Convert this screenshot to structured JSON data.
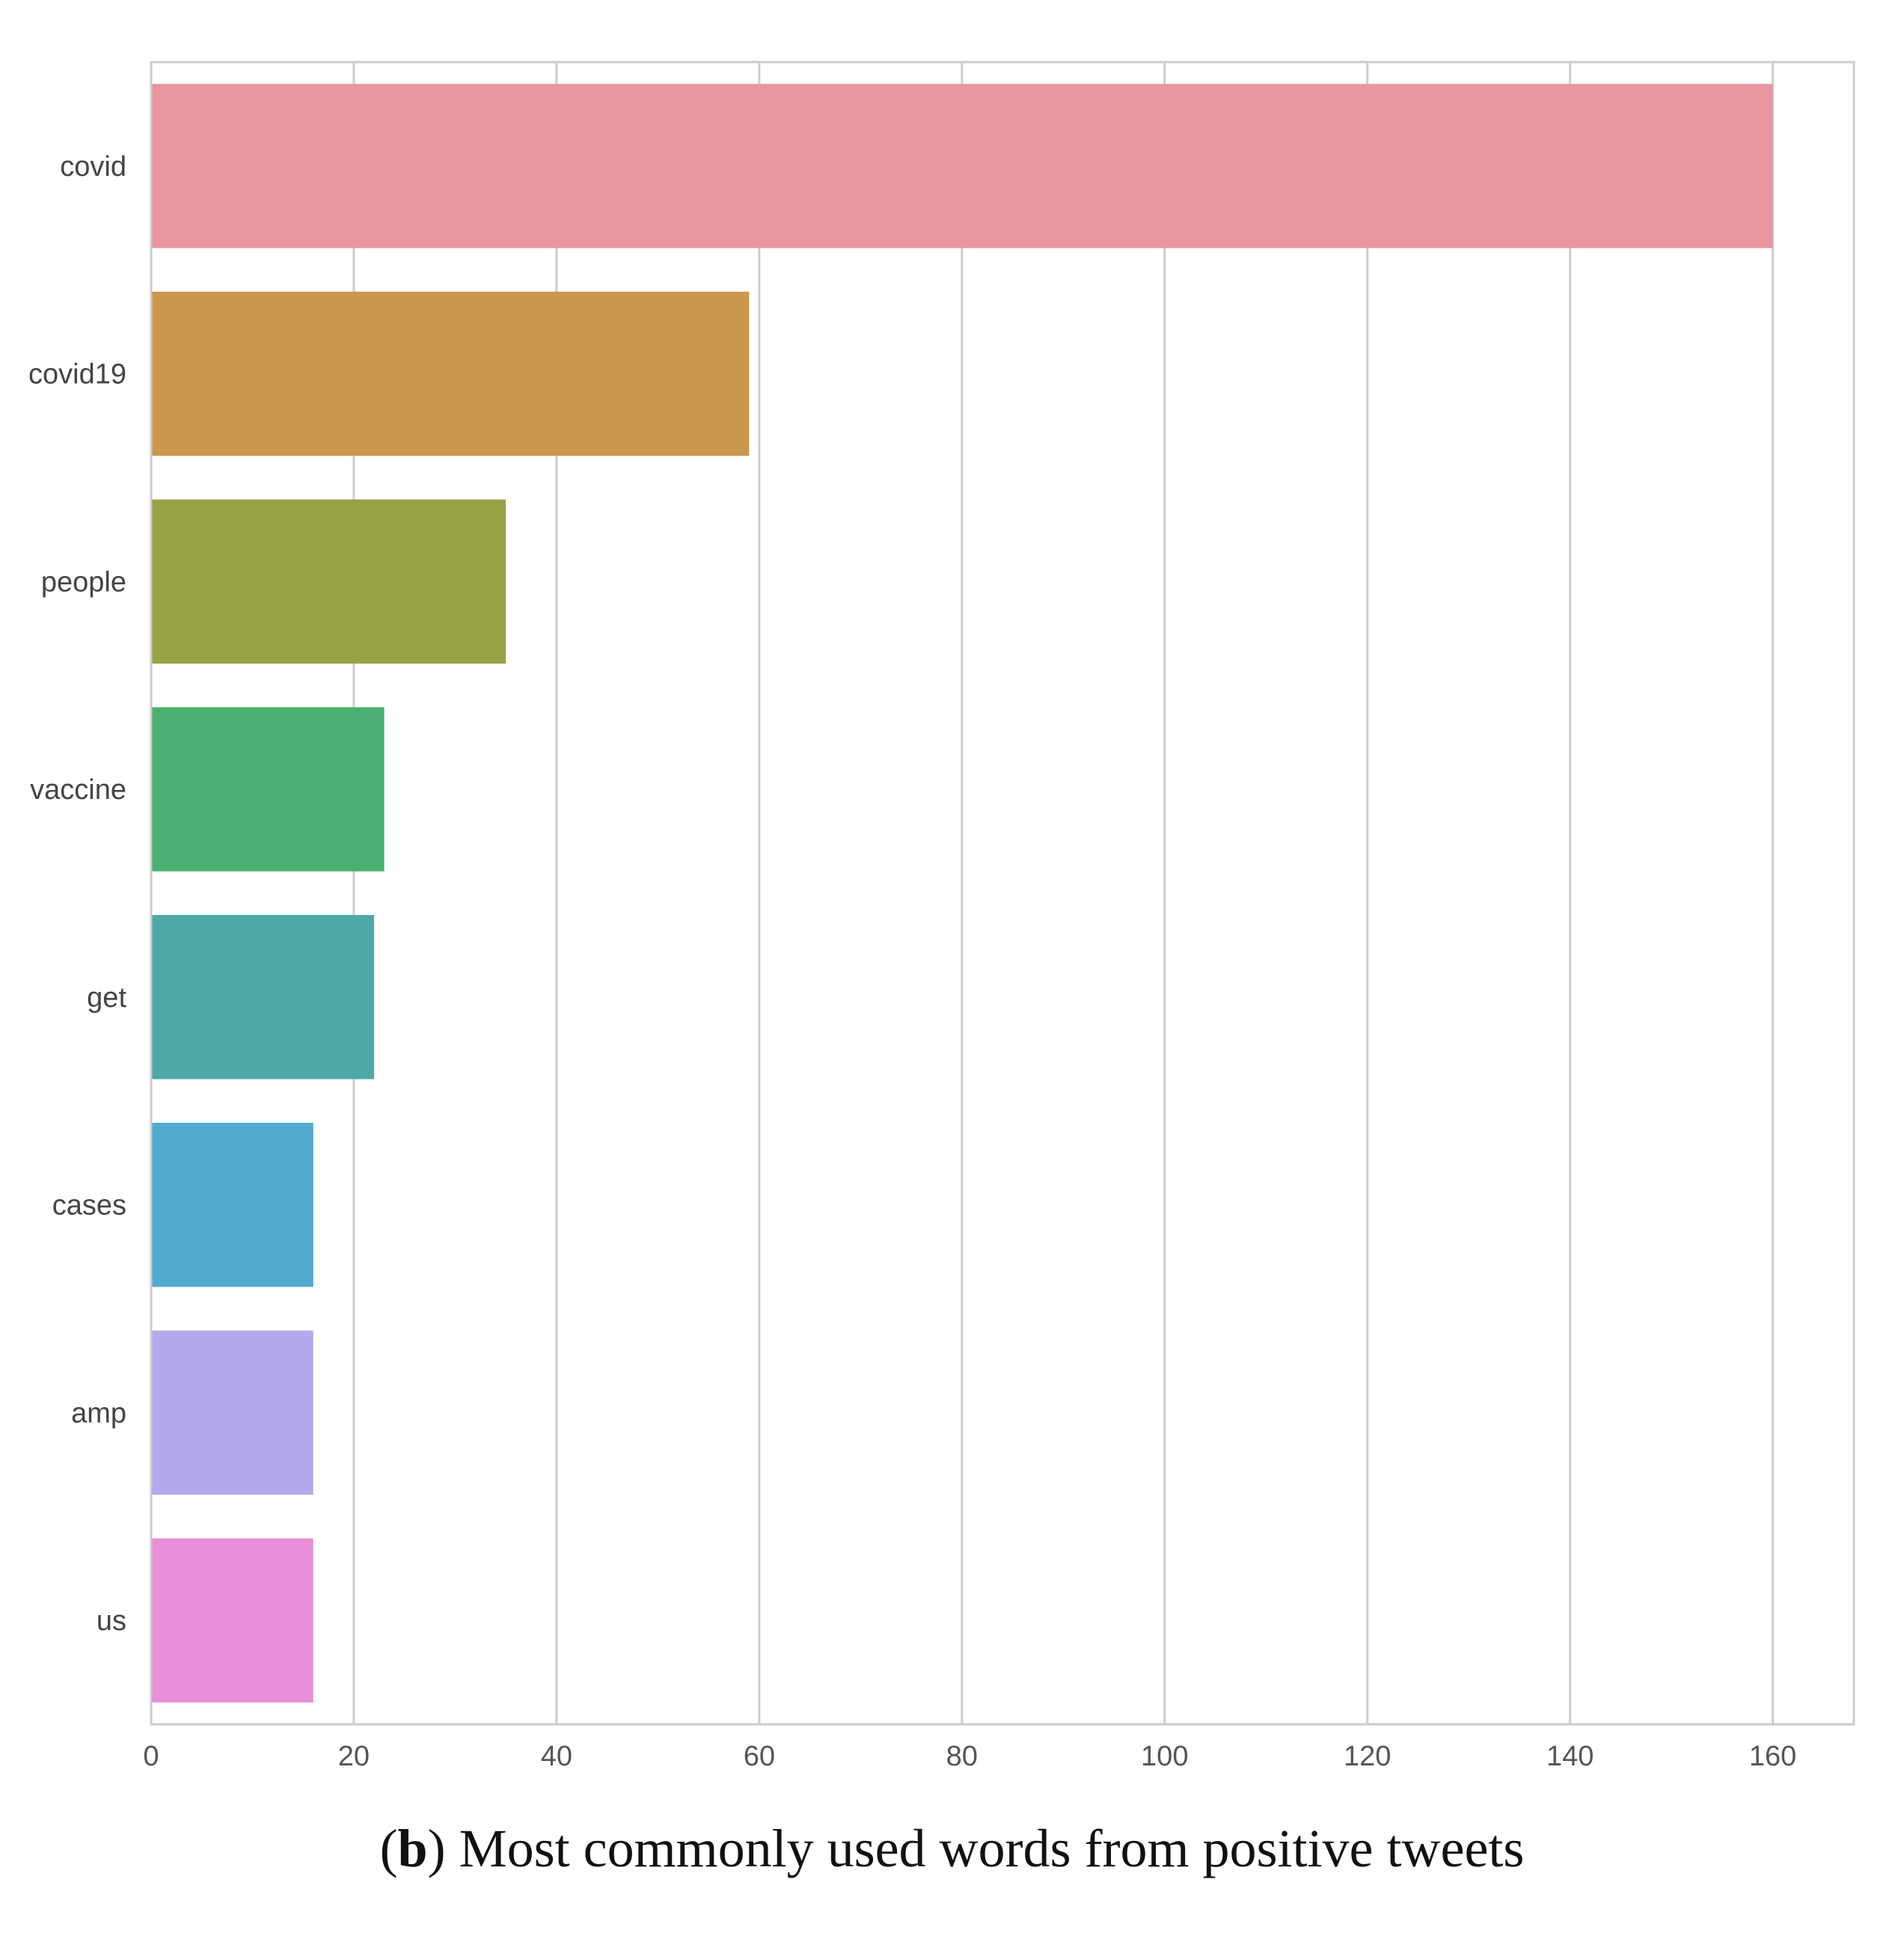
{
  "caption": {
    "open_paren": "(",
    "letter": "b",
    "text": ") Most commonly used words from positive tweets"
  },
  "chart_data": {
    "type": "bar",
    "orientation": "horizontal",
    "title": "",
    "xlabel": "",
    "ylabel": "",
    "categories": [
      "covid",
      "covid19",
      "people",
      "vaccine",
      "get",
      "cases",
      "amp",
      "us"
    ],
    "values": [
      160,
      59,
      35,
      23,
      22,
      16,
      16,
      16
    ],
    "colors": [
      "#ea95a2",
      "#ca974c",
      "#98a246",
      "#4caf72",
      "#4da8a6",
      "#53aad0",
      "#b5a8ec",
      "#e78fd8"
    ],
    "xlim": [
      0,
      168
    ],
    "xticks": [
      0,
      20,
      40,
      60,
      80,
      100,
      120,
      140,
      160
    ],
    "grid": true
  }
}
